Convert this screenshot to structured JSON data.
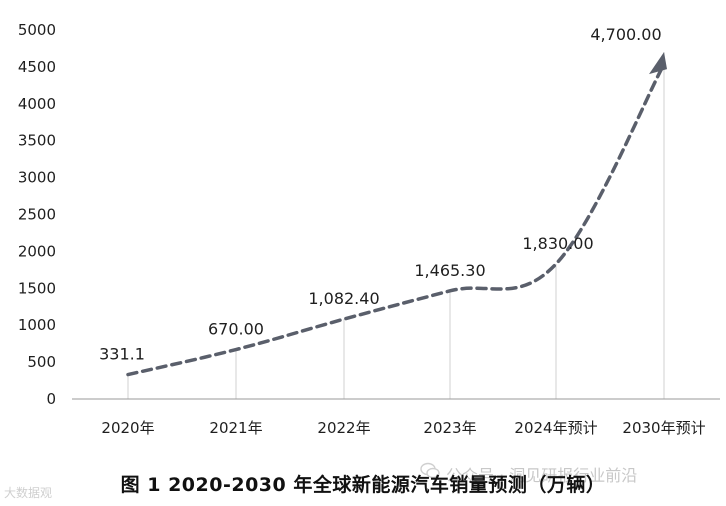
{
  "chart_data": {
    "type": "line",
    "categories": [
      "2020年",
      "2021年",
      "2022年",
      "2023年",
      "2024年预计",
      "2030年预计"
    ],
    "values": [
      331.1,
      670.0,
      1082.4,
      1465.3,
      1830.0,
      4700.0
    ],
    "data_labels": [
      "331.1",
      "670.00",
      "1,082.40",
      "1,465.30",
      "1,830.00",
      "4,700.00"
    ],
    "yticks": [
      "0",
      "500",
      "1000",
      "1500",
      "2000",
      "2500",
      "3000",
      "3500",
      "4000",
      "4500",
      "5000"
    ],
    "ylim": [
      0,
      5000
    ],
    "line_style": "dashed",
    "arrow_end": true,
    "drop_lines": true,
    "colors": {
      "line": "#5a5f6b",
      "drop": "#d9d9d9",
      "axis": "#9a9a9a"
    }
  },
  "caption": "图 1    2020-2030 年全球新能源汽车销量预测（万辆）",
  "watermark": "公众号 · 洞见研报行业前沿",
  "corner_mark": "大数据观"
}
